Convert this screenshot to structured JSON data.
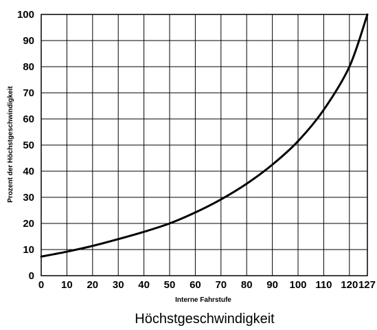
{
  "chart_data": {
    "type": "line",
    "title": "Höchstgeschwindigkeit",
    "xlabel": "Interne Fahrstufe",
    "ylabel": "Prozent der Höchstgeschwindigkeit",
    "xlim": [
      0,
      127
    ],
    "ylim": [
      0,
      100
    ],
    "x_ticks": [
      0,
      10,
      20,
      30,
      40,
      50,
      60,
      70,
      80,
      90,
      100,
      110,
      120,
      127
    ],
    "y_ticks": [
      0,
      10,
      20,
      30,
      40,
      50,
      60,
      70,
      80,
      90,
      100
    ],
    "grid": true,
    "legend": "none",
    "line_color": "#000000",
    "series": [
      {
        "x": [
          0,
          10,
          20,
          30,
          40,
          50,
          60,
          70,
          80,
          90,
          100,
          110,
          120,
          127
        ],
        "y": [
          7.3,
          9.2,
          11.4,
          14.0,
          16.8,
          20.0,
          24.2,
          29.2,
          35.2,
          42.5,
          51.5,
          63.5,
          80.0,
          100.0
        ]
      }
    ]
  }
}
